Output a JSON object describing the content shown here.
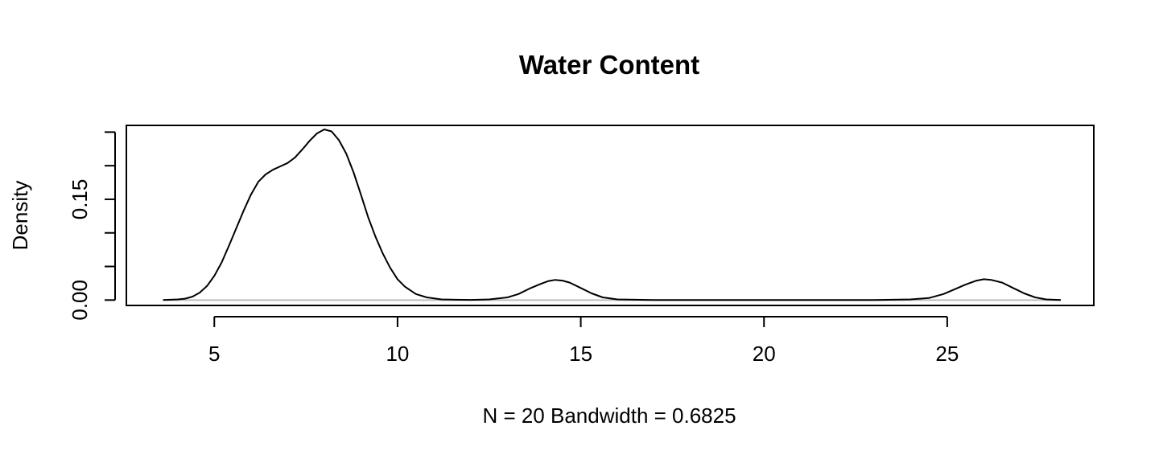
{
  "chart_data": {
    "type": "line",
    "title": "Water Content",
    "xlabel": "N = 20   Bandwidth = 0.6825",
    "ylabel": "Density",
    "xlim": [
      2.6,
      29.0
    ],
    "ylim": [
      -0.008,
      0.26
    ],
    "x_ticks": [
      5,
      10,
      15,
      20,
      25
    ],
    "x_tick_labels": [
      "5",
      "10",
      "15",
      "20",
      "25"
    ],
    "y_ticks": [
      0.0,
      0.05,
      0.1,
      0.15,
      0.2,
      0.25
    ],
    "y_tick_labels": [
      "0.00",
      "",
      "",
      "0.15",
      "",
      ""
    ],
    "baseline": 0,
    "grid": false,
    "legend": "none",
    "colors": {
      "curve": "#000000",
      "baseline": "#bebebe",
      "frame": "#000000"
    },
    "series": [
      {
        "x": [
          3.6,
          3.8,
          4.0,
          4.2,
          4.4,
          4.6,
          4.8,
          5.0,
          5.2,
          5.4,
          5.6,
          5.8,
          6.0,
          6.2,
          6.4,
          6.6,
          6.8,
          7.0,
          7.2,
          7.4,
          7.6,
          7.8,
          8.0,
          8.2,
          8.4,
          8.6,
          8.8,
          9.0,
          9.2,
          9.4,
          9.6,
          9.8,
          10.0,
          10.2,
          10.5,
          10.8,
          11.2,
          11.6,
          12.0,
          12.5,
          13.0,
          13.3,
          13.6,
          13.9,
          14.1,
          14.3,
          14.5,
          14.7,
          15.0,
          15.3,
          15.6,
          16.0,
          17.0,
          18.0,
          19.0,
          20.0,
          21.0,
          22.0,
          23.0,
          24.0,
          24.5,
          24.9,
          25.2,
          25.5,
          25.8,
          26.0,
          26.2,
          26.5,
          26.8,
          27.1,
          27.4,
          27.7,
          28.1
        ],
        "y": [
          0.0,
          0.0005,
          0.001,
          0.002,
          0.005,
          0.011,
          0.021,
          0.036,
          0.056,
          0.081,
          0.107,
          0.133,
          0.157,
          0.176,
          0.187,
          0.194,
          0.199,
          0.204,
          0.212,
          0.224,
          0.237,
          0.248,
          0.254,
          0.251,
          0.238,
          0.218,
          0.19,
          0.157,
          0.123,
          0.094,
          0.069,
          0.048,
          0.031,
          0.02,
          0.009,
          0.004,
          0.001,
          0.0005,
          0.0002,
          0.001,
          0.004,
          0.009,
          0.017,
          0.024,
          0.028,
          0.03,
          0.029,
          0.026,
          0.018,
          0.01,
          0.004,
          0.001,
          0.0,
          0.0,
          0.0,
          0.0,
          0.0,
          0.0,
          0.0,
          0.001,
          0.003,
          0.009,
          0.016,
          0.023,
          0.029,
          0.031,
          0.03,
          0.026,
          0.018,
          0.01,
          0.004,
          0.001,
          0.0
        ]
      }
    ]
  }
}
